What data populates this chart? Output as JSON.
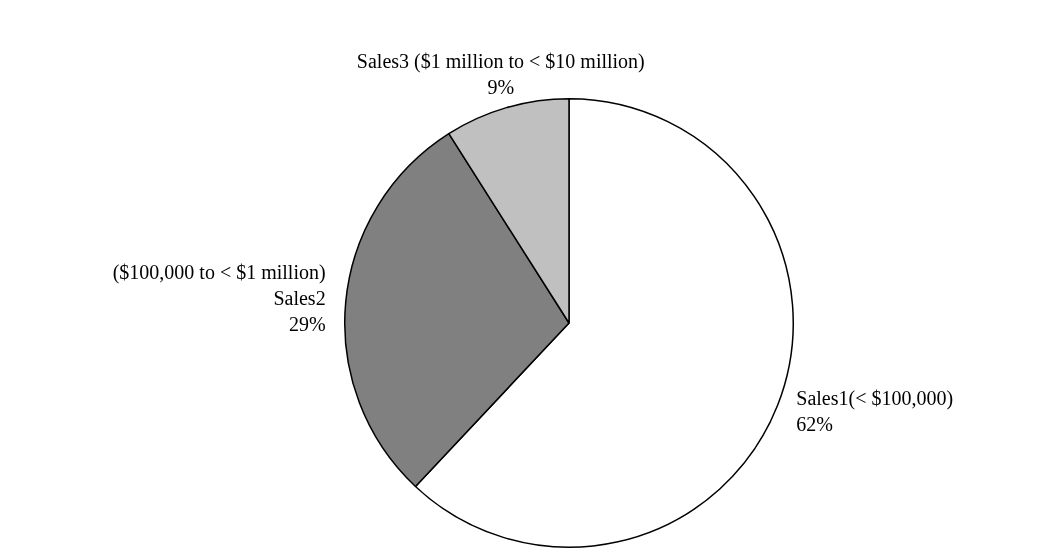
{
  "chart_data": {
    "type": "pie",
    "categories": [
      "Sales1(< $100,000)",
      "($100,000 to < $1 million)\nSales2",
      "Sales3 ($1 million to < $10 million)"
    ],
    "values": [
      62,
      29,
      9
    ],
    "value_labels": [
      "62%",
      "29%",
      "9%"
    ],
    "colors": [
      "#ffffff",
      "#808080",
      "#c0c0c0"
    ],
    "legend": false
  }
}
